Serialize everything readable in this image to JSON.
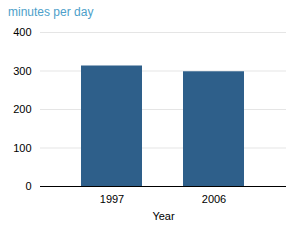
{
  "chart_data": {
    "type": "bar",
    "title": "minutes per day",
    "xlabel": "Year",
    "categories": [
      "1997",
      "2006"
    ],
    "values": [
      313,
      298
    ],
    "color": "#2e5f8a",
    "ylim": [
      0,
      400
    ],
    "yticks": [
      0,
      100,
      200,
      300,
      400
    ],
    "grid": true
  }
}
